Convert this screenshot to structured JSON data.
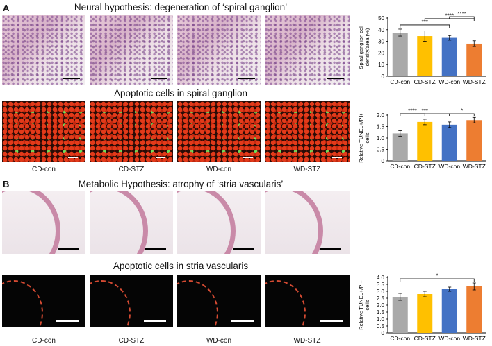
{
  "panels": {
    "a_letter": "A",
    "b_letter": "B",
    "title1": "Neural hypothesis: degeneration of ‘spiral ganglion’",
    "title2": "Apoptotic cells in spiral ganglion",
    "title3": "Metabolic Hypothesis: atrophy of ‘stria vascularis’",
    "title4": "Apoptotic cells in stria vascularis"
  },
  "image_labels": {
    "row_b": [
      "CD-con",
      "CD-STZ",
      "WD-con",
      "WD-STZ"
    ],
    "row_d": [
      "CD-con",
      "CD-STZ",
      "WD-con",
      "WD-STZ"
    ]
  },
  "colors": {
    "CD-con": "#a9a9a9",
    "CD-STZ": "#ffc000",
    "WD-con": "#4472c4",
    "WD-STZ": "#ed7d31"
  },
  "chart_data": [
    {
      "type": "bar",
      "categories": [
        "CD-con",
        "CD-STZ",
        "WD-con",
        "WD-STZ"
      ],
      "values": [
        37.5,
        34.5,
        33,
        28
      ],
      "errors": [
        3,
        4.5,
        2,
        2.5
      ],
      "ylabel": "Spiral ganglion cell density/area (%)",
      "ylim": [
        0,
        50
      ],
      "yticks": [
        "0",
        "10",
        "20",
        "30",
        "40",
        "50"
      ],
      "yticks_num": [
        0,
        10,
        20,
        30,
        40,
        50
      ],
      "brackets": [
        {
          "from": 0,
          "to": 2,
          "label": "***"
        },
        {
          "from": 1,
          "to": 3,
          "label": "****"
        },
        {
          "from": 2,
          "to": 3,
          "label": "****"
        }
      ]
    },
    {
      "type": "bar",
      "categories": [
        "CD-con",
        "CD-STZ",
        "WD-con",
        "WD-STZ"
      ],
      "values": [
        1.2,
        1.7,
        1.58,
        1.78
      ],
      "errors": [
        0.12,
        0.12,
        0.12,
        0.12
      ],
      "ylabel": "Relative TUNEL+/PI+ cells",
      "ylim": [
        0,
        2.0
      ],
      "yticks": [
        "0",
        "0.5",
        "1.0",
        "1.5",
        "2.0"
      ],
      "yticks_num": [
        0,
        0.5,
        1.0,
        1.5,
        2.0
      ],
      "brackets": [
        {
          "from": 0,
          "to": 1,
          "label": "****"
        },
        {
          "from": 0,
          "to": 2,
          "label": "***"
        },
        {
          "from": 2,
          "to": 3,
          "label": "*"
        }
      ]
    },
    {
      "type": "bar",
      "categories": [
        "CD-con",
        "CD-STZ",
        "WD-con",
        "WD-STZ"
      ],
      "values": [
        2.6,
        2.8,
        3.15,
        3.35
      ],
      "errors": [
        0.25,
        0.2,
        0.15,
        0.25
      ],
      "ylabel": "Relative TUNEL+/PI+ cells",
      "ylim": [
        0,
        4.0
      ],
      "yticks": [
        "0",
        "0.5",
        "1.0",
        "1.5",
        "2.0",
        "2.5",
        "3.0",
        "3.5",
        "4.0"
      ],
      "yticks_num": [
        0,
        0.5,
        1.0,
        1.5,
        2.0,
        2.5,
        3.0,
        3.5,
        4.0
      ],
      "brackets": [
        {
          "from": 0,
          "to": 3,
          "label": "*"
        }
      ]
    }
  ]
}
